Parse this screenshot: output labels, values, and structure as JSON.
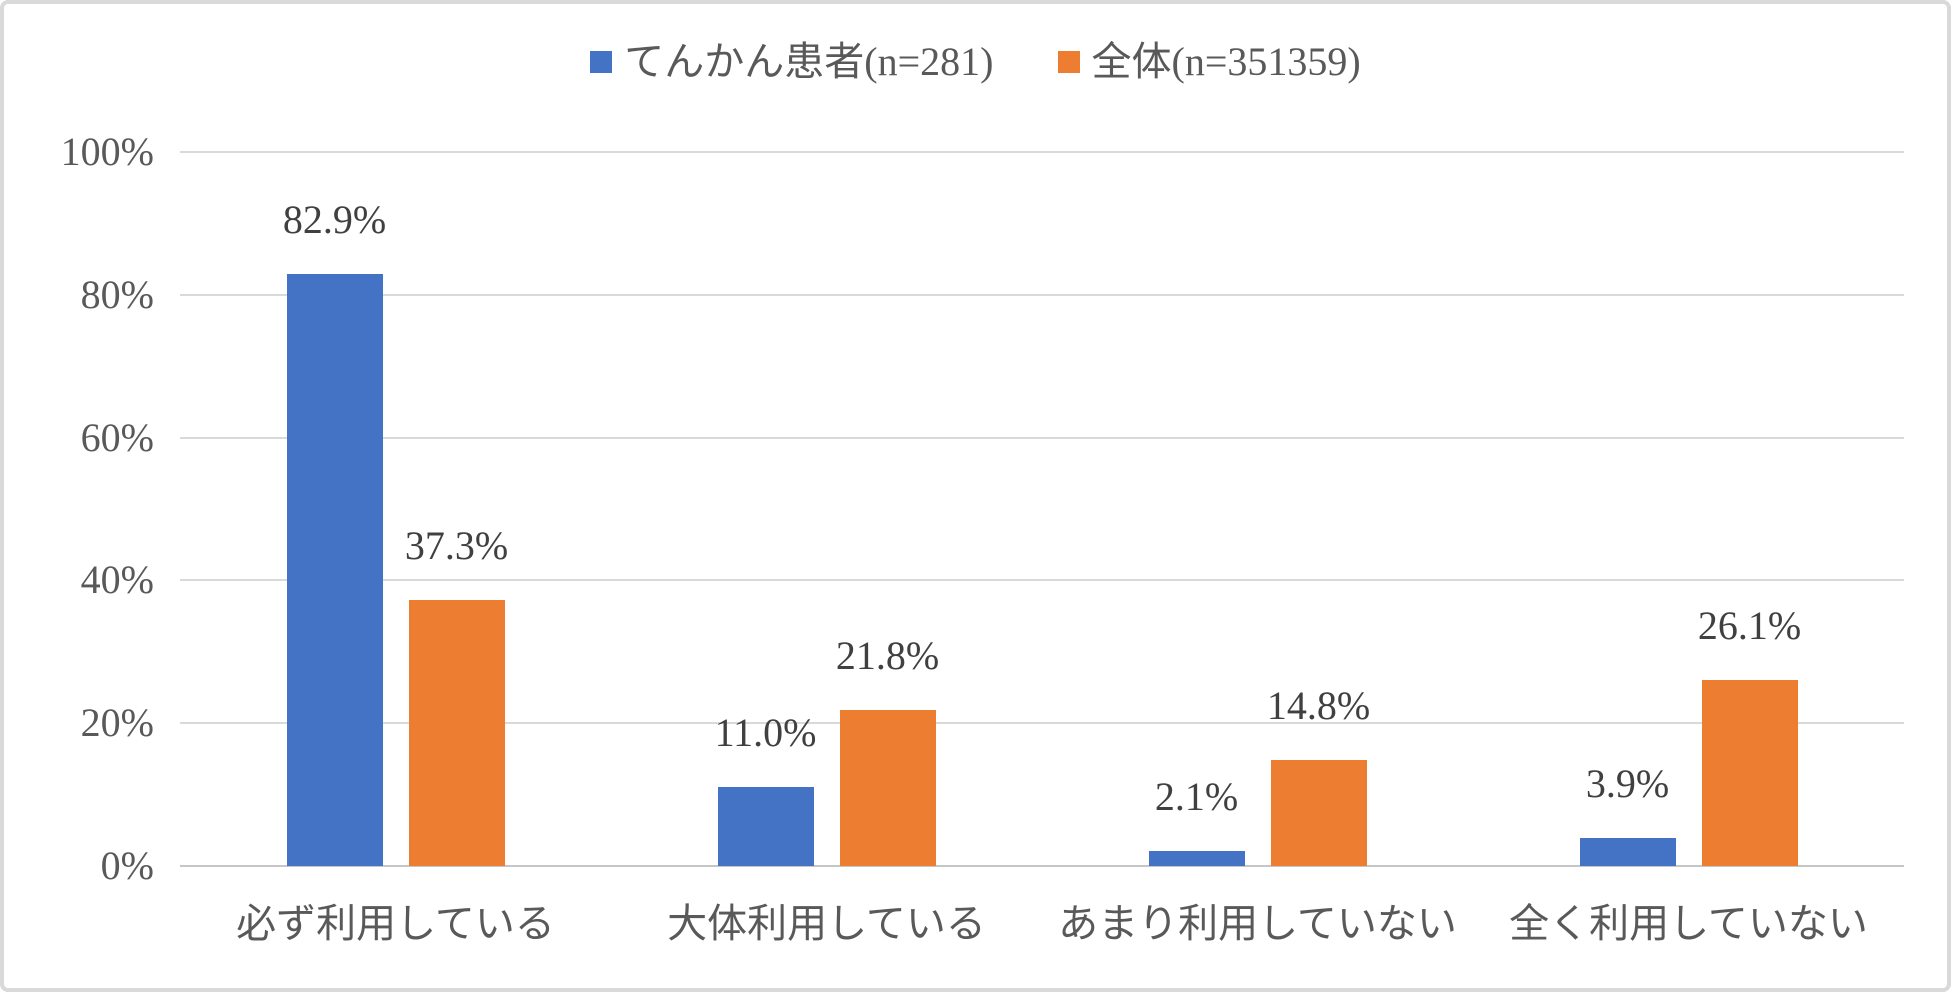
{
  "frame": {
    "background": "#ffffff",
    "border_color": "#d9d9d9"
  },
  "legend": {
    "position": "top",
    "items": [
      {
        "label": "てんかん患者(n=281)",
        "color": "#4472C4"
      },
      {
        "label": "全体(n=351359)",
        "color": "#ED7D31"
      }
    ]
  },
  "chart_data": {
    "type": "bar",
    "title": "",
    "xlabel": "",
    "ylabel": "",
    "grid": true,
    "legend_position": "top",
    "categories": [
      "必ず利用している",
      "大体利用している",
      "あまり利用していない",
      "全く利用していない"
    ],
    "series": [
      {
        "name": "てんかん患者(n=281)",
        "color": "#4472C4",
        "values": [
          82.9,
          11.0,
          2.1,
          3.9
        ],
        "labels": [
          "82.9%",
          "11.0%",
          "2.1%",
          "3.9%"
        ]
      },
      {
        "name": "全体(n=351359)",
        "color": "#ED7D31",
        "values": [
          37.3,
          21.8,
          14.8,
          26.1
        ],
        "labels": [
          "37.3%",
          "21.8%",
          "14.8%",
          "26.1%"
        ]
      }
    ],
    "y_axis": {
      "min": 0,
      "max": 100,
      "step": 20,
      "tick_labels": [
        "0%",
        "20%",
        "40%",
        "60%",
        "80%",
        "100%"
      ]
    },
    "ylim": [
      0,
      100
    ],
    "colors": {
      "gridline": "#d9d9d9",
      "axis_line": "#c6c6c6",
      "axis_text": "#595959",
      "data_label_text": "#404040"
    }
  }
}
